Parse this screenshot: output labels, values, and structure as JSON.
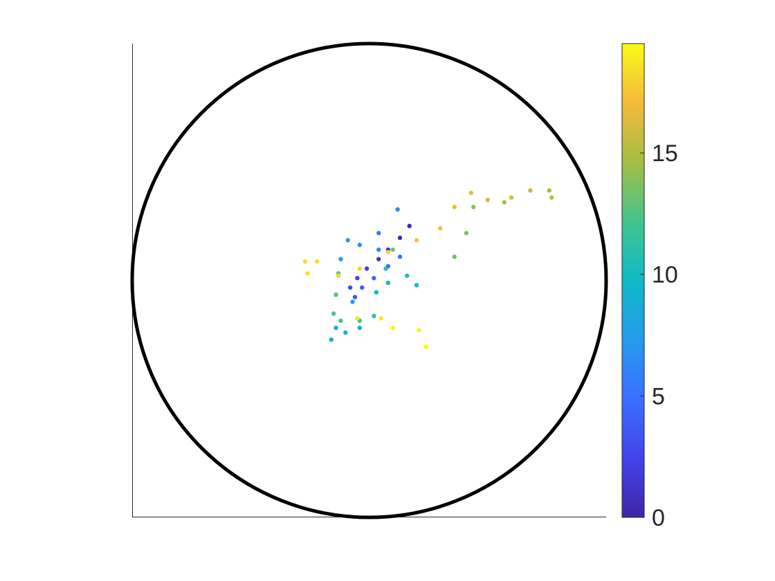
{
  "chart_data": {
    "type": "scatter",
    "title": "",
    "xlabel": "",
    "ylabel": "",
    "xlim": [
      -1,
      1
    ],
    "ylim": [
      -1,
      1
    ],
    "grid": false,
    "legend": "none",
    "boundary_circle": {
      "center": [
        0,
        0
      ],
      "radius": 1,
      "color": "#000000"
    },
    "colorbar": {
      "position": "right",
      "colormap": "parula",
      "clim": [
        0,
        19.5
      ],
      "ticks": [
        0,
        5,
        10,
        15
      ],
      "tick_labels": [
        "0",
        "5",
        "10",
        "15"
      ]
    },
    "series": [
      {
        "color_variable": "time",
        "points": [
          {
            "x": 0.17,
            "y": 0.23,
            "c": 0.0
          },
          {
            "x": 0.13,
            "y": 0.18,
            "c": 0.5
          },
          {
            "x": 0.08,
            "y": 0.13,
            "c": 1.0
          },
          {
            "x": 0.04,
            "y": 0.09,
            "c": 1.5
          },
          {
            "x": -0.01,
            "y": 0.05,
            "c": 2.0
          },
          {
            "x": -0.05,
            "y": 0.01,
            "c": 2.5
          },
          {
            "x": -0.08,
            "y": -0.03,
            "c": 3.0
          },
          {
            "x": -0.06,
            "y": -0.07,
            "c": 3.5
          },
          {
            "x": -0.03,
            "y": -0.03,
            "c": 4.0
          },
          {
            "x": 0.02,
            "y": 0.01,
            "c": 4.4
          },
          {
            "x": 0.08,
            "y": 0.06,
            "c": 4.8
          },
          {
            "x": 0.13,
            "y": 0.1,
            "c": 5.2
          },
          {
            "x": 0.04,
            "y": 0.2,
            "c": 5.6
          },
          {
            "x": 0.12,
            "y": 0.3,
            "c": 6.0
          },
          {
            "x": 0.04,
            "y": 0.13,
            "c": 6.4
          },
          {
            "x": -0.04,
            "y": 0.15,
            "c": 6.8
          },
          {
            "x": -0.09,
            "y": 0.17,
            "c": 7.2
          },
          {
            "x": -0.12,
            "y": 0.09,
            "c": 7.6
          },
          {
            "x": -0.07,
            "y": -0.09,
            "c": 8.0
          },
          {
            "x": -0.14,
            "y": -0.2,
            "c": 8.3
          },
          {
            "x": -0.16,
            "y": -0.25,
            "c": 8.6
          },
          {
            "x": -0.1,
            "y": -0.22,
            "c": 8.9
          },
          {
            "x": -0.04,
            "y": -0.2,
            "c": 9.2
          },
          {
            "x": 0.03,
            "y": -0.05,
            "c": 9.5
          },
          {
            "x": 0.08,
            "y": -0.01,
            "c": 9.8
          },
          {
            "x": 0.2,
            "y": -0.02,
            "c": 10.1
          },
          {
            "x": 0.16,
            "y": 0.02,
            "c": 10.4
          },
          {
            "x": 0.07,
            "y": 0.05,
            "c": 10.8
          },
          {
            "x": 0.02,
            "y": -0.15,
            "c": 11.2
          },
          {
            "x": -0.04,
            "y": -0.17,
            "c": 11.6
          },
          {
            "x": -0.12,
            "y": -0.17,
            "c": 12.0
          },
          {
            "x": -0.15,
            "y": -0.14,
            "c": 12.3
          },
          {
            "x": -0.14,
            "y": -0.06,
            "c": 12.6
          },
          {
            "x": -0.13,
            "y": 0.03,
            "c": 12.9
          },
          {
            "x": 0.1,
            "y": 0.13,
            "c": 13.2
          },
          {
            "x": 0.36,
            "y": 0.1,
            "c": 13.5
          },
          {
            "x": 0.41,
            "y": 0.2,
            "c": 13.8
          },
          {
            "x": 0.44,
            "y": 0.31,
            "c": 14.1
          },
          {
            "x": 0.57,
            "y": 0.33,
            "c": 14.4
          },
          {
            "x": 0.76,
            "y": 0.38,
            "c": 14.8
          },
          {
            "x": 0.77,
            "y": 0.35,
            "c": 15.2
          },
          {
            "x": 0.68,
            "y": 0.38,
            "c": 15.6
          },
          {
            "x": 0.6,
            "y": 0.35,
            "c": 16.0
          },
          {
            "x": 0.5,
            "y": 0.34,
            "c": 16.3
          },
          {
            "x": 0.43,
            "y": 0.37,
            "c": 16.6
          },
          {
            "x": 0.36,
            "y": 0.31,
            "c": 16.9
          },
          {
            "x": 0.3,
            "y": 0.22,
            "c": 17.2
          },
          {
            "x": 0.2,
            "y": 0.17,
            "c": 17.5
          },
          {
            "x": 0.08,
            "y": 0.12,
            "c": 17.8
          },
          {
            "x": -0.04,
            "y": 0.05,
            "c": 18.0
          },
          {
            "x": -0.13,
            "y": 0.02,
            "c": 18.2
          },
          {
            "x": -0.22,
            "y": 0.08,
            "c": 18.4
          },
          {
            "x": -0.27,
            "y": 0.08,
            "c": 18.5
          },
          {
            "x": -0.26,
            "y": 0.03,
            "c": 18.6
          },
          {
            "x": -0.05,
            "y": -0.16,
            "c": 18.8
          },
          {
            "x": 0.05,
            "y": -0.16,
            "c": 19.0
          },
          {
            "x": 0.1,
            "y": -0.2,
            "c": 19.2
          },
          {
            "x": 0.21,
            "y": -0.21,
            "c": 19.4
          },
          {
            "x": 0.24,
            "y": -0.28,
            "c": 19.5
          }
        ]
      }
    ]
  }
}
